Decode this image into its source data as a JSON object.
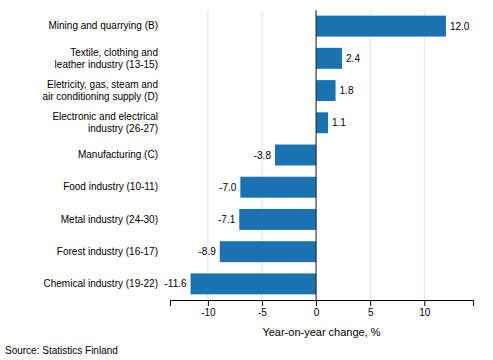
{
  "chart_data": {
    "type": "bar",
    "orientation": "horizontal",
    "categories": [
      "Chemical industry (19-22)",
      "Forest industry (16-17)",
      "Metal industry (24-30)",
      "Food industry (10-11)",
      "Manufacturing (C)",
      "Electronic and electrical\nindustry (26-27)",
      "Eletricity, gas, steam and\nair conditioning supply (D)",
      "Textile, clothing and\nleather industry (13-15)",
      "Mining and quarrying (B)"
    ],
    "values": [
      -11.6,
      -8.9,
      -7.1,
      -7.0,
      -3.8,
      1.1,
      1.8,
      2.4,
      12.0
    ],
    "value_labels": [
      "-11.6",
      "-8.9",
      "-7.1",
      "-7.0",
      "-3.8",
      "1.1",
      "1.8",
      "2.4",
      "12.0"
    ],
    "data_labels": true,
    "color": "#1a72b0",
    "xlabel": "Year-on-year change, %",
    "xlim": [
      -13.5,
      14.5
    ],
    "xticks": [
      -10,
      -5,
      0,
      5,
      10
    ],
    "grid": true,
    "annotations": [
      "Source: Statistics Finland"
    ]
  }
}
